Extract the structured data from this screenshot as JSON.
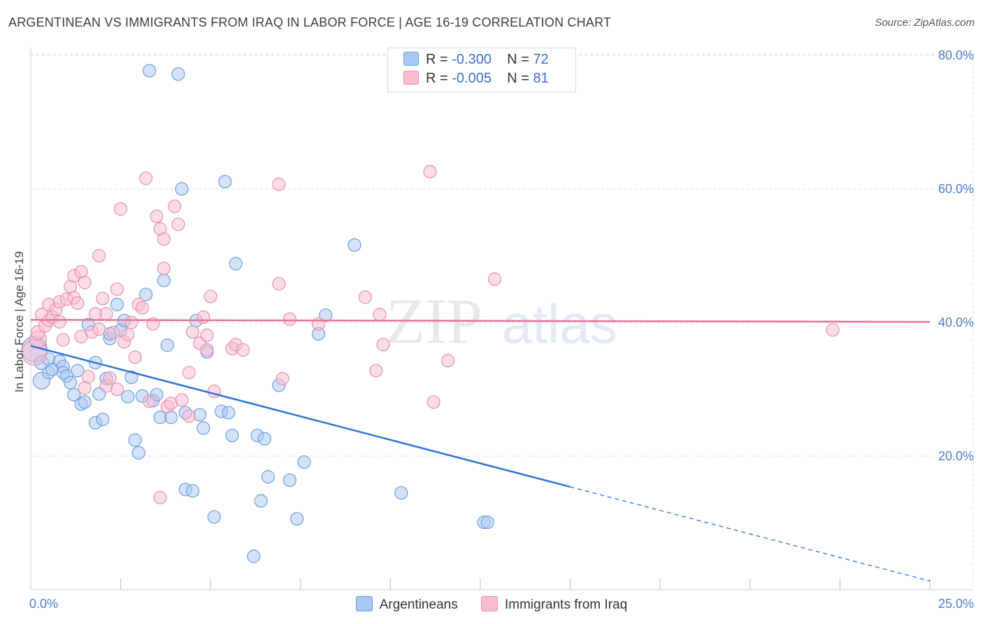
{
  "header": {
    "title": "ARGENTINEAN VS IMMIGRANTS FROM IRAQ IN LABOR FORCE | AGE 16-19 CORRELATION CHART",
    "source": "Source: ZipAtlas.com"
  },
  "watermark": {
    "zip": "ZIP",
    "atlas": "atlas"
  },
  "legend": {
    "rows": [
      {
        "r_label": "R = ",
        "r_value": "-0.300",
        "n_label": "N = ",
        "n_value": "72",
        "color": "#a9c8f2"
      },
      {
        "r_label": "R = ",
        "r_value": "-0.005",
        "n_label": "N = ",
        "n_value": "81",
        "color": "#f7bcd0"
      }
    ],
    "bottom": [
      "Argentineans",
      "Immigrants from Iraq"
    ]
  },
  "colors": {
    "blue_fill": "#a9c8f2",
    "blue_stroke": "#6a9ee0",
    "blue_line": "#2f73d6",
    "pink_fill": "#f7bcd0",
    "pink_stroke": "#ea8fae",
    "pink_line": "#e8729a",
    "grid": "#dddddd",
    "tick_text": "#4a7fd0"
  },
  "chart_data": {
    "type": "scatter",
    "ylabel": "In Labor Force | Age 16-19",
    "xlim": [
      0,
      25
    ],
    "ylim": [
      0,
      82
    ],
    "x_tick_labels": [
      {
        "value": 0,
        "label": "0.0%"
      },
      {
        "value": 25,
        "label": "25.0%"
      }
    ],
    "y_tick_labels": [
      {
        "value": 20,
        "label": "20.0%"
      },
      {
        "value": 40,
        "label": "40.0%"
      },
      {
        "value": 60,
        "label": "60.0%"
      },
      {
        "value": 80,
        "label": "80.0%"
      }
    ],
    "x_minor_ticks": [
      2.5,
      5,
      7.5,
      10,
      12.5,
      15,
      17.5,
      20,
      22.5,
      25
    ],
    "grid": true,
    "series": [
      {
        "name": "Argentineans",
        "r": -0.3,
        "n": 72,
        "trend": {
          "x0": 0,
          "y0": 36.5,
          "x1": 15,
          "y1": 15.4,
          "dashed_to_x": 25,
          "dashed_to_y": 1.3
        },
        "points": [
          [
            0.1,
            36,
            18
          ],
          [
            0.3,
            31.3,
            12
          ],
          [
            0.3,
            34,
            10
          ],
          [
            0.5,
            34.5,
            9
          ],
          [
            0.5,
            32.5,
            9
          ],
          [
            0.6,
            33,
            9
          ],
          [
            0.8,
            34.2,
            9
          ],
          [
            0.9,
            33.4,
            9
          ],
          [
            0.9,
            32.5,
            9
          ],
          [
            1.0,
            32,
            9
          ],
          [
            1.1,
            31,
            9
          ],
          [
            1.2,
            29.2,
            9
          ],
          [
            1.3,
            32.8,
            9
          ],
          [
            1.4,
            27.8,
            9
          ],
          [
            1.5,
            28.1,
            9
          ],
          [
            1.6,
            39.7,
            9
          ],
          [
            1.8,
            34,
            9
          ],
          [
            1.8,
            25,
            9
          ],
          [
            1.9,
            29.3,
            9
          ],
          [
            2.0,
            25.5,
            9
          ],
          [
            2.1,
            31.6,
            9
          ],
          [
            2.2,
            37.6,
            9
          ],
          [
            2.2,
            38.3,
            9
          ],
          [
            2.4,
            42.7,
            9
          ],
          [
            2.5,
            38.9,
            9
          ],
          [
            2.6,
            40.3,
            9
          ],
          [
            2.7,
            28.9,
            9
          ],
          [
            2.8,
            31.8,
            9
          ],
          [
            2.9,
            22.4,
            9
          ],
          [
            3.0,
            20.5,
            9
          ],
          [
            3.1,
            29,
            9
          ],
          [
            3.2,
            44.2,
            9
          ],
          [
            3.3,
            77.7,
            9
          ],
          [
            3.4,
            28.3,
            9
          ],
          [
            3.5,
            29.2,
            9
          ],
          [
            3.6,
            25.8,
            9
          ],
          [
            3.7,
            46.3,
            9
          ],
          [
            3.8,
            36.6,
            9
          ],
          [
            3.9,
            25.8,
            9
          ],
          [
            4.1,
            77.2,
            9
          ],
          [
            4.2,
            60,
            9
          ],
          [
            4.3,
            26.5,
            9
          ],
          [
            4.3,
            15,
            9
          ],
          [
            4.5,
            14.8,
            9
          ],
          [
            4.6,
            40.3,
            9
          ],
          [
            4.7,
            26.2,
            9
          ],
          [
            4.8,
            24.2,
            9
          ],
          [
            4.9,
            35.6,
            9
          ],
          [
            5.1,
            10.9,
            9
          ],
          [
            5.3,
            26.7,
            9
          ],
          [
            5.4,
            61.1,
            9
          ],
          [
            5.5,
            26.5,
            9
          ],
          [
            5.6,
            23.1,
            9
          ],
          [
            5.7,
            48.8,
            9
          ],
          [
            6.2,
            5,
            9
          ],
          [
            6.3,
            23.1,
            9
          ],
          [
            6.4,
            13.3,
            9
          ],
          [
            6.5,
            22.6,
            9
          ],
          [
            6.6,
            16.9,
            9
          ],
          [
            6.9,
            30.6,
            9
          ],
          [
            7.2,
            16.4,
            9
          ],
          [
            7.4,
            10.6,
            9
          ],
          [
            7.6,
            19.1,
            9
          ],
          [
            8.0,
            38.3,
            9
          ],
          [
            8.2,
            41.1,
            9
          ],
          [
            9.0,
            51.6,
            9
          ],
          [
            10.3,
            14.5,
            9
          ],
          [
            12.6,
            10.1,
            9
          ],
          [
            12.7,
            10.1,
            9
          ]
        ]
      },
      {
        "name": "Immigrants from Iraq",
        "r": -0.005,
        "n": 81,
        "trend": {
          "x0": 0,
          "y0": 40.4,
          "x1": 25,
          "y1": 40.1
        },
        "points": [
          [
            0.1,
            35.5,
            18
          ],
          [
            0.2,
            37.5,
            12
          ],
          [
            0.2,
            38.5,
            10
          ],
          [
            0.3,
            41.2,
            9
          ],
          [
            0.4,
            39.5,
            9
          ],
          [
            0.5,
            40.3,
            9
          ],
          [
            0.5,
            42.7,
            9
          ],
          [
            0.6,
            40.8,
            9
          ],
          [
            0.7,
            42,
            9
          ],
          [
            0.8,
            43.1,
            9
          ],
          [
            0.8,
            40.1,
            9
          ],
          [
            0.9,
            37.4,
            9
          ],
          [
            1.0,
            43.5,
            9
          ],
          [
            1.1,
            45.4,
            9
          ],
          [
            1.2,
            43.7,
            9
          ],
          [
            1.2,
            47,
            9
          ],
          [
            1.3,
            42.9,
            9
          ],
          [
            1.4,
            47.6,
            9
          ],
          [
            1.4,
            37.9,
            9
          ],
          [
            1.5,
            46,
            9
          ],
          [
            1.5,
            30.2,
            9
          ],
          [
            1.6,
            31.9,
            9
          ],
          [
            1.7,
            38.6,
            9
          ],
          [
            1.8,
            41.3,
            9
          ],
          [
            1.9,
            39,
            9
          ],
          [
            1.9,
            50,
            9
          ],
          [
            2.0,
            43.6,
            9
          ],
          [
            2.1,
            41.3,
            9
          ],
          [
            2.1,
            30.5,
            9
          ],
          [
            2.2,
            31.7,
            9
          ],
          [
            2.3,
            38.5,
            9
          ],
          [
            2.4,
            30,
            9
          ],
          [
            2.4,
            45,
            9
          ],
          [
            2.5,
            57,
            9
          ],
          [
            2.6,
            37.1,
            9
          ],
          [
            2.7,
            38.2,
            9
          ],
          [
            2.8,
            40,
            9
          ],
          [
            2.9,
            34.8,
            9
          ],
          [
            3.0,
            42.7,
            9
          ],
          [
            3.1,
            42.2,
            9
          ],
          [
            3.2,
            61.6,
            9
          ],
          [
            3.3,
            28.2,
            9
          ],
          [
            3.4,
            39.8,
            9
          ],
          [
            3.5,
            55.9,
            9
          ],
          [
            3.6,
            54,
            9
          ],
          [
            3.6,
            13.8,
            9
          ],
          [
            3.7,
            48.1,
            9
          ],
          [
            3.7,
            52.5,
            9
          ],
          [
            3.8,
            27.4,
            9
          ],
          [
            3.9,
            27.9,
            9
          ],
          [
            4.0,
            57.4,
            9
          ],
          [
            4.1,
            54.7,
            9
          ],
          [
            4.2,
            28.4,
            9
          ],
          [
            4.4,
            26,
            9
          ],
          [
            4.4,
            32.5,
            9
          ],
          [
            4.5,
            38.6,
            9
          ],
          [
            4.7,
            36.9,
            9
          ],
          [
            4.8,
            40.8,
            9
          ],
          [
            4.9,
            38.1,
            9
          ],
          [
            4.9,
            35.9,
            9
          ],
          [
            5.0,
            43.9,
            9
          ],
          [
            5.1,
            29.7,
            9
          ],
          [
            5.6,
            36.1,
            9
          ],
          [
            5.7,
            36.7,
            9
          ],
          [
            5.9,
            35.9,
            9
          ],
          [
            6.9,
            45.8,
            9
          ],
          [
            6.9,
            60.7,
            9
          ],
          [
            7.0,
            31.6,
            9
          ],
          [
            7.2,
            40.5,
            9
          ],
          [
            8.0,
            39.8,
            9
          ],
          [
            9.3,
            43.8,
            9
          ],
          [
            9.6,
            32.8,
            9
          ],
          [
            9.7,
            41.2,
            9
          ],
          [
            9.8,
            36.7,
            9
          ],
          [
            11.1,
            62.6,
            9
          ],
          [
            11.2,
            28.1,
            9
          ],
          [
            11.6,
            34.3,
            9
          ],
          [
            12.9,
            46.5,
            9
          ],
          [
            22.3,
            38.9,
            9
          ]
        ]
      }
    ]
  }
}
